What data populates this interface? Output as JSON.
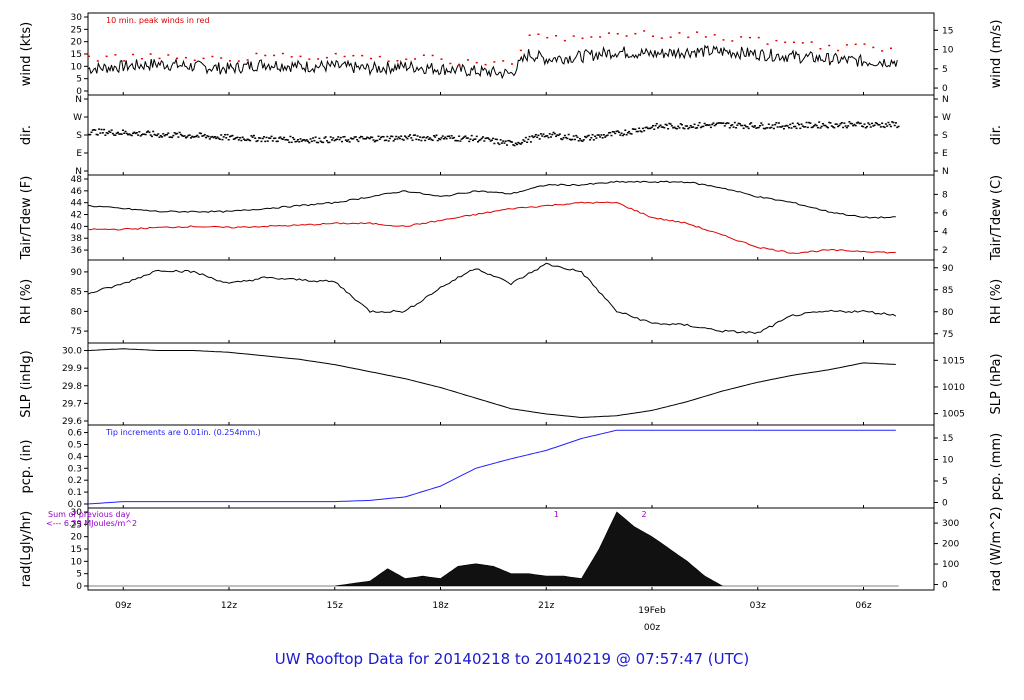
{
  "footer_title": "UW Rooftop Data for 20140218  to  20140219 @ 07:57:47  (UTC)",
  "date_label": "19Feb",
  "date_hour": "00z",
  "colors": {
    "primary": "#000000",
    "peak": "#e00000",
    "tdew": "#e00000",
    "pcp": "#2020ff",
    "rad_note": "#9900cc",
    "title": "#1a1ad0"
  },
  "chart_data": [
    {
      "type": "line",
      "title": "",
      "note": "10 min. peak winds in red",
      "ylabel_left": "wind (kts)",
      "ylabel_right": "wind (m/s)",
      "yticks_left": [
        0,
        5,
        10,
        15,
        20,
        25,
        30
      ],
      "yticks_right": [
        0,
        5,
        10,
        15
      ],
      "ylim": [
        0,
        30
      ],
      "x_start": "2014-02-18 07:58",
      "x_end": "2014-02-19 07:58",
      "series": [
        {
          "color": "#000000",
          "x": [
            "08z",
            "09z",
            "10z",
            "11z",
            "12z",
            "13z",
            "14z",
            "15z",
            "16z",
            "17z",
            "18z",
            "19z",
            "20z",
            "20:30z",
            "21z",
            "22z",
            "23z",
            "00z",
            "01z",
            "02z",
            "03z",
            "04z",
            "05z",
            "06z",
            "07z"
          ],
          "values": [
            9,
            10,
            11,
            10,
            9,
            11,
            10,
            10,
            9,
            10,
            9,
            8,
            7,
            15,
            13,
            14,
            16,
            15,
            16,
            16,
            15,
            14,
            13,
            12,
            12
          ]
        },
        {
          "color": "#e00000",
          "x": [
            "08z",
            "09z",
            "10z",
            "11z",
            "12z",
            "13z",
            "14z",
            "15z",
            "16z",
            "17z",
            "18z",
            "19z",
            "20z",
            "20:30z",
            "21z",
            "22z",
            "23z",
            "00z",
            "01z",
            "02z",
            "03z",
            "04z",
            "05z",
            "06z",
            "07z"
          ],
          "values": [
            13,
            14,
            15,
            14,
            13,
            15,
            14,
            14,
            13,
            14,
            13,
            12,
            11,
            23,
            21,
            22,
            24,
            23,
            23,
            22,
            21,
            20,
            18,
            18,
            18
          ]
        }
      ]
    },
    {
      "type": "scatter",
      "ylabel_left": "dir.",
      "ylabel_right": "dir.",
      "yticks_left": [
        "N",
        "E",
        "S",
        "W",
        "N"
      ],
      "yticks_right": [
        "N",
        "E",
        "S",
        "W",
        "N"
      ],
      "ylim": [
        0,
        360
      ],
      "series": [
        {
          "color": "#000000",
          "x": [
            "08z",
            "09z",
            "10z",
            "11z",
            "12z",
            "13z",
            "14z",
            "15z",
            "16z",
            "17z",
            "18z",
            "19z",
            "20z",
            "21z",
            "22z",
            "23z",
            "00z",
            "01z",
            "02z",
            "03z",
            "04z",
            "05z",
            "06z",
            "07z"
          ],
          "values": [
            200,
            195,
            185,
            180,
            170,
            165,
            160,
            160,
            165,
            170,
            170,
            165,
            140,
            185,
            165,
            190,
            225,
            230,
            235,
            230,
            230,
            235,
            235,
            235
          ]
        }
      ]
    },
    {
      "type": "line",
      "ylabel_left": "Tair/Tdew (F)",
      "ylabel_right": "Tair/Tdew (C)",
      "yticks_left": [
        36,
        38,
        40,
        42,
        44,
        46,
        48
      ],
      "yticks_right": [
        2,
        4,
        6,
        8
      ],
      "ylim": [
        35,
        48
      ],
      "series": [
        {
          "name": "",
          "color": "#000000",
          "x": [
            "08z",
            "09z",
            "10z",
            "11z",
            "12z",
            "13z",
            "14z",
            "15z",
            "16z",
            "17z",
            "18z",
            "19z",
            "20z",
            "21z",
            "22z",
            "23z",
            "00z",
            "01z",
            "02z",
            "03z",
            "04z",
            "05z",
            "06z",
            "07z"
          ],
          "values": [
            43.5,
            43,
            42.5,
            42.5,
            42.5,
            43,
            43.5,
            44,
            45,
            46,
            45,
            46,
            45.5,
            47,
            47,
            47.5,
            47.5,
            47.5,
            46.5,
            45,
            44,
            42.5,
            41.5,
            41.5
          ]
        },
        {
          "name": "",
          "color": "#e00000",
          "x": [
            "08z",
            "09z",
            "10z",
            "11z",
            "12z",
            "13z",
            "14z",
            "15z",
            "16z",
            "17z",
            "18z",
            "19z",
            "20z",
            "21z",
            "22z",
            "23z",
            "00z",
            "01z",
            "02z",
            "03z",
            "04z",
            "05z",
            "06z",
            "07z"
          ],
          "values": [
            39.5,
            39.5,
            39.8,
            40,
            39.8,
            40,
            40.2,
            40.5,
            40.5,
            40,
            41,
            42,
            43,
            43.5,
            44,
            44,
            41.5,
            40.5,
            38.5,
            36.5,
            35.5,
            36,
            35.8,
            35.5
          ]
        }
      ]
    },
    {
      "type": "line",
      "ylabel_left": "RH (%)",
      "ylabel_right": "RH (%)",
      "yticks_left": [
        75,
        80,
        85,
        90
      ],
      "yticks_right": [
        75,
        80,
        85,
        90
      ],
      "ylim": [
        73,
        92
      ],
      "series": [
        {
          "color": "#000000",
          "x": [
            "08z",
            "09z",
            "10z",
            "11z",
            "12z",
            "13z",
            "14z",
            "15z",
            "16z",
            "17z",
            "18z",
            "19z",
            "20z",
            "21z",
            "22z",
            "23z",
            "00z",
            "01z",
            "02z",
            "03z",
            "04z",
            "05z",
            "06z",
            "07z"
          ],
          "values": [
            84.5,
            87,
            90.5,
            90,
            87,
            88.5,
            88,
            87.5,
            80,
            80,
            86,
            91,
            87,
            92,
            90,
            80,
            77,
            76.5,
            75,
            74.5,
            79,
            80,
            80,
            79
          ]
        }
      ]
    },
    {
      "type": "line",
      "ylabel_left": "SLP (inHg)",
      "ylabel_right": "SLP (hPa)",
      "yticks_left": [
        "29.6",
        "29.7",
        "29.8",
        "29.9",
        "30.0"
      ],
      "yticks_right": [
        1005,
        1010,
        1015
      ],
      "ylim": [
        29.6,
        30.02
      ],
      "series": [
        {
          "color": "#000000",
          "x": [
            "08z",
            "09z",
            "10z",
            "11z",
            "12z",
            "13z",
            "14z",
            "15z",
            "16z",
            "17z",
            "18z",
            "19z",
            "20z",
            "21z",
            "22z",
            "23z",
            "00z",
            "01z",
            "02z",
            "03z",
            "04z",
            "05z",
            "06z",
            "07z"
          ],
          "values": [
            30.0,
            30.01,
            30.0,
            30.0,
            29.99,
            29.97,
            29.95,
            29.92,
            29.88,
            29.84,
            29.79,
            29.73,
            29.67,
            29.64,
            29.62,
            29.63,
            29.66,
            29.71,
            29.77,
            29.82,
            29.86,
            29.89,
            29.93,
            29.92
          ]
        }
      ]
    },
    {
      "type": "line",
      "note": "Tip increments are 0.01in. (0.254mm.)",
      "ylabel_left": "pcp. (in)",
      "ylabel_right": "pcp. (mm)",
      "yticks_left": [
        "0.0",
        "0.1",
        "0.2",
        "0.3",
        "0.4",
        "0.5",
        "0.6"
      ],
      "yticks_right": [
        0,
        5,
        10,
        15
      ],
      "ylim": [
        0,
        0.63
      ],
      "series": [
        {
          "color": "#2020ff",
          "x": [
            "08z",
            "09z",
            "10z",
            "11z",
            "12z",
            "13z",
            "14z",
            "15z",
            "16z",
            "17z",
            "18z",
            "19z",
            "20z",
            "21z",
            "22z",
            "23z",
            "00z",
            "01z",
            "02z",
            "03z",
            "04z",
            "05z",
            "06z",
            "07z"
          ],
          "values": [
            0.0,
            0.02,
            0.02,
            0.02,
            0.02,
            0.02,
            0.02,
            0.02,
            0.03,
            0.06,
            0.15,
            0.3,
            0.38,
            0.45,
            0.55,
            0.62,
            0.62,
            0.62,
            0.62,
            0.62,
            0.62,
            0.62,
            0.62,
            0.62
          ]
        }
      ]
    },
    {
      "type": "area",
      "ylabel_left": "rad(Lgly/hr)",
      "ylabel_right": "rad (W/m^2)",
      "yticks_left": [
        0,
        5,
        10,
        15,
        20,
        25,
        30
      ],
      "yticks_right": [
        0,
        100,
        200,
        300
      ],
      "ylim": [
        0,
        30
      ],
      "notes": [
        "Sum of previous day",
        "<--- 6.39 MJoules/m^2"
      ],
      "markers": [
        "1",
        "2"
      ],
      "series": [
        {
          "color": "#000000",
          "x": [
            "08z",
            "09z",
            "10z",
            "11z",
            "12z",
            "13z",
            "14z",
            "15z",
            "16z",
            "16:30z",
            "17z",
            "17:30z",
            "18z",
            "18:30z",
            "19z",
            "19:30z",
            "20z",
            "20:30z",
            "21z",
            "21:30z",
            "22z",
            "22:30z",
            "23z",
            "23:30z",
            "00z",
            "00:30z",
            "01z",
            "01:30z",
            "02z",
            "03z",
            "04z",
            "05z",
            "06z",
            "07z"
          ],
          "values": [
            0,
            0,
            0,
            0,
            0,
            0,
            0,
            0,
            2,
            7,
            3,
            4,
            3,
            8,
            9,
            8,
            5,
            5,
            4,
            4,
            3,
            15,
            30,
            24,
            20,
            15,
            10,
            4,
            0,
            0,
            0,
            0,
            0,
            0
          ]
        }
      ]
    }
  ],
  "x_axis": {
    "tick_labels": [
      "09z",
      "12z",
      "15z",
      "18z",
      "21z",
      "00z",
      "03z",
      "06z"
    ],
    "date_label": "19Feb"
  }
}
